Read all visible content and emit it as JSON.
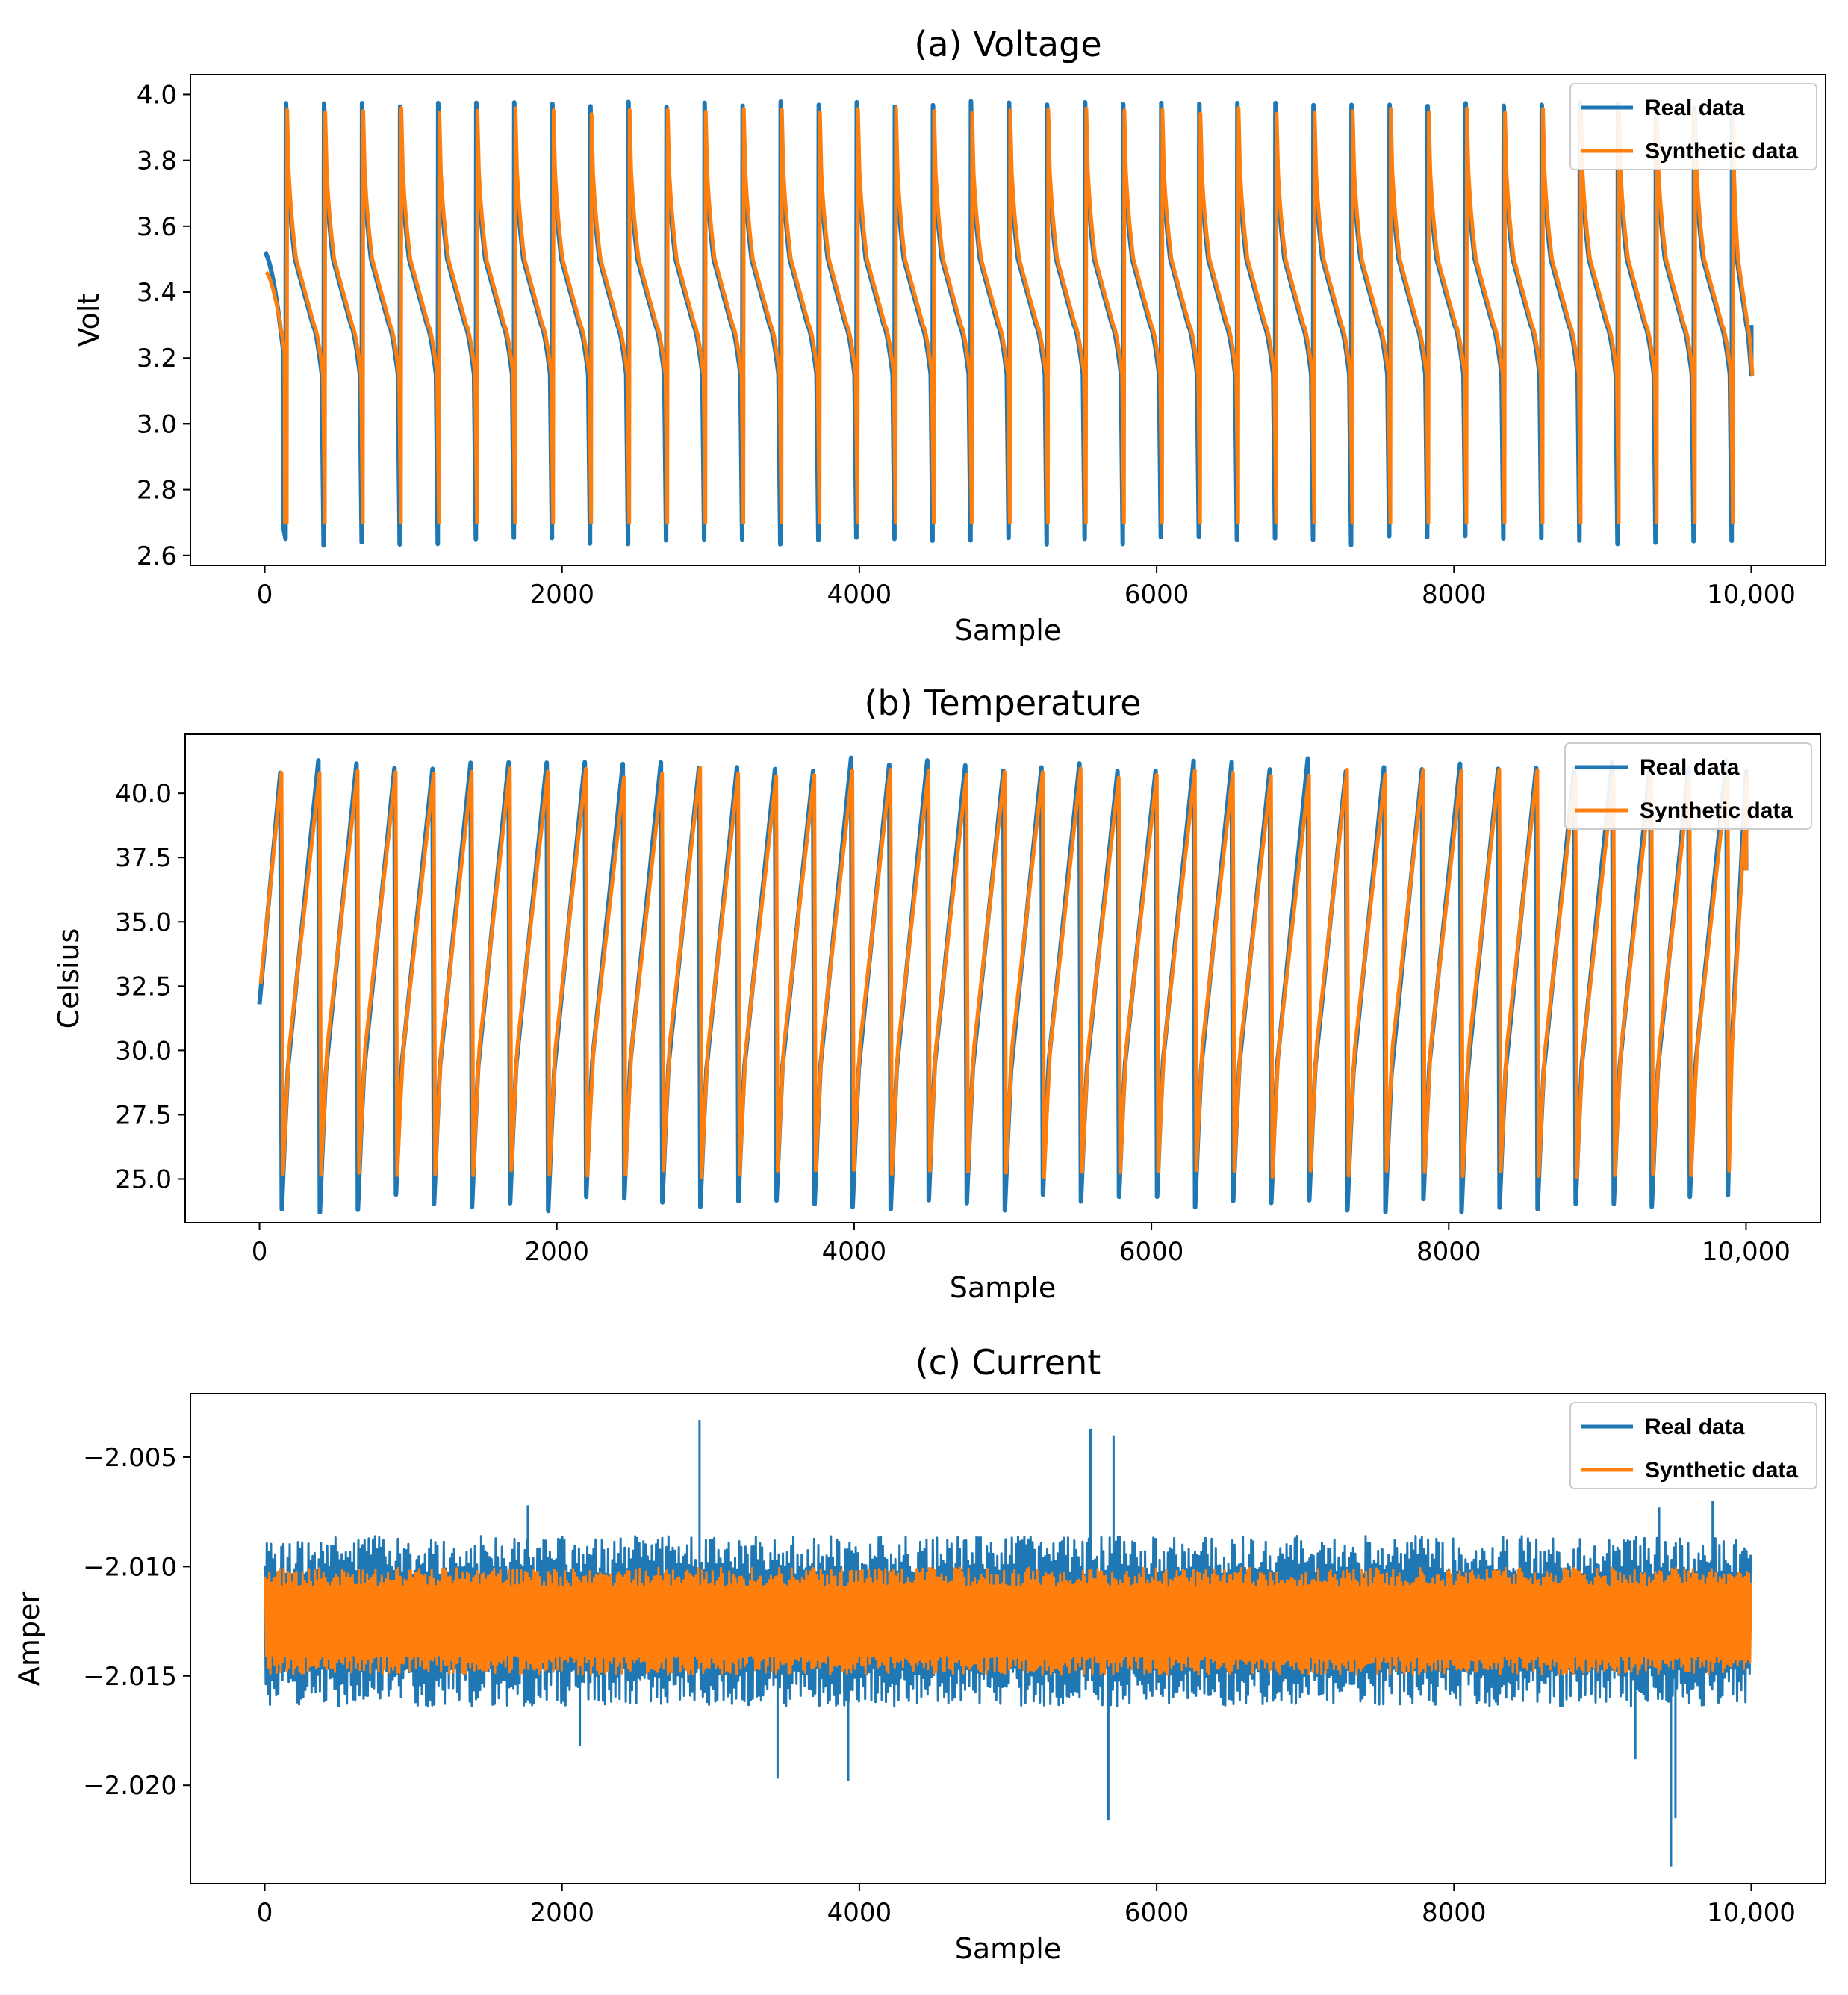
{
  "colors": {
    "real": "#1f77b4",
    "synthetic": "#ff7f0e",
    "axes": "#000000",
    "background": "#ffffff"
  },
  "chart_data": [
    {
      "id": "voltage",
      "type": "line",
      "title": "(a) Voltage",
      "xlabel": "Sample",
      "ylabel": "Volt",
      "xlim": [
        -500,
        10500
      ],
      "ylim": [
        2.57,
        4.06
      ],
      "xticks": [
        0,
        2000,
        4000,
        6000,
        8000,
        10000
      ],
      "xtick_labels": [
        "0",
        "2000",
        "4000",
        "6000",
        "8000",
        "10,000"
      ],
      "yticks": [
        2.6,
        2.8,
        3.0,
        3.2,
        3.4,
        3.6,
        3.8,
        4.0
      ],
      "ytick_labels": [
        "2.6",
        "2.8",
        "3.0",
        "3.2",
        "3.4",
        "3.6",
        "3.8",
        "4.0"
      ],
      "legend": {
        "placement": "top-right",
        "entries": [
          "Real data",
          "Synthetic data"
        ]
      },
      "cycle": {
        "period": 256,
        "count": 39,
        "peak": 3.97,
        "trough": 2.68,
        "plateau_high": 3.5,
        "plateau_low": 3.3,
        "start_real": 3.52,
        "start_synth": 3.46,
        "end_real": 3.3,
        "end_synth": 3.2,
        "x_end": 10000
      },
      "series": [
        {
          "name": "Real data",
          "color_key": "real",
          "description": "periodic discharge cycles: jump to ~3.98 V, decay through 3.5–3.3 V plateau, drop to ~2.64–2.70 V"
        },
        {
          "name": "Synthetic data",
          "color_key": "synthetic",
          "description": "closely follows real data, troughs ~2.70 V"
        }
      ]
    },
    {
      "id": "temperature",
      "type": "line",
      "title": "(b) Temperature",
      "xlabel": "Sample",
      "ylabel": "Celsius",
      "xlim": [
        -500,
        10500
      ],
      "ylim": [
        23.3,
        42.3
      ],
      "xticks": [
        0,
        2000,
        4000,
        6000,
        8000,
        10000
      ],
      "xtick_labels": [
        "0",
        "2000",
        "4000",
        "6000",
        "8000",
        "10,000"
      ],
      "yticks": [
        25.0,
        27.5,
        30.0,
        32.5,
        35.0,
        37.5,
        40.0
      ],
      "ytick_labels": [
        "25.0",
        "27.5",
        "30.0",
        "32.5",
        "35.0",
        "37.5",
        "40.0"
      ],
      "legend": {
        "placement": "top-right",
        "entries": [
          "Real data",
          "Synthetic data"
        ]
      },
      "cycle": {
        "period": 256,
        "count": 39,
        "peak": 40.8,
        "trough": 24.6,
        "start_real": 31.8,
        "start_synth": 32.6,
        "end": 37.0,
        "x_end": 10000
      },
      "series": [
        {
          "name": "Real data",
          "color_key": "real",
          "description": "sawtooth cycles rising from ~24.2 °C to ~41 °C"
        },
        {
          "name": "Synthetic data",
          "color_key": "synthetic",
          "description": "closely follows real data, troughs ~25.2 °C"
        }
      ]
    },
    {
      "id": "current",
      "type": "line",
      "title": "(c) Current",
      "xlabel": "Sample",
      "ylabel": "Amper",
      "xlim": [
        -500,
        10500
      ],
      "ylim": [
        -2.0245,
        -2.0021
      ],
      "xticks": [
        0,
        2000,
        4000,
        6000,
        8000,
        10000
      ],
      "xtick_labels": [
        "0",
        "2000",
        "4000",
        "6000",
        "8000",
        "10,000"
      ],
      "yticks": [
        -2.02,
        -2.015,
        -2.01,
        -2.005
      ],
      "ytick_labels": [
        "−2.020",
        "−2.015",
        "−2.010",
        "−2.005"
      ],
      "legend": {
        "placement": "top-right",
        "entries": [
          "Real data",
          "Synthetic data"
        ]
      },
      "noise": {
        "center": -2.0125,
        "real_upper": -2.0095,
        "real_lower": -2.0155,
        "synth_upper": -2.0105,
        "synth_lower": -2.0145,
        "x_end": 10000
      },
      "spikes": [
        {
          "x": 2925,
          "y": -2.0033
        },
        {
          "x": 5555,
          "y": -2.0037
        },
        {
          "x": 5710,
          "y": -2.004
        },
        {
          "x": 1770,
          "y": -2.0072
        },
        {
          "x": 9380,
          "y": -2.0073
        },
        {
          "x": 9740,
          "y": -2.007
        },
        {
          "x": 3450,
          "y": -2.0197
        },
        {
          "x": 3925,
          "y": -2.0198
        },
        {
          "x": 5675,
          "y": -2.0216
        },
        {
          "x": 9460,
          "y": -2.0237
        },
        {
          "x": 9490,
          "y": -2.0215
        },
        {
          "x": 9220,
          "y": -2.0188
        },
        {
          "x": 2120,
          "y": -2.0182
        }
      ],
      "series": [
        {
          "name": "Real data",
          "color_key": "real",
          "description": "noisy band around -2.0125 A with occasional spikes"
        },
        {
          "name": "Synthetic data",
          "color_key": "synthetic",
          "description": "narrower noisy band around -2.0125 A"
        }
      ]
    }
  ]
}
